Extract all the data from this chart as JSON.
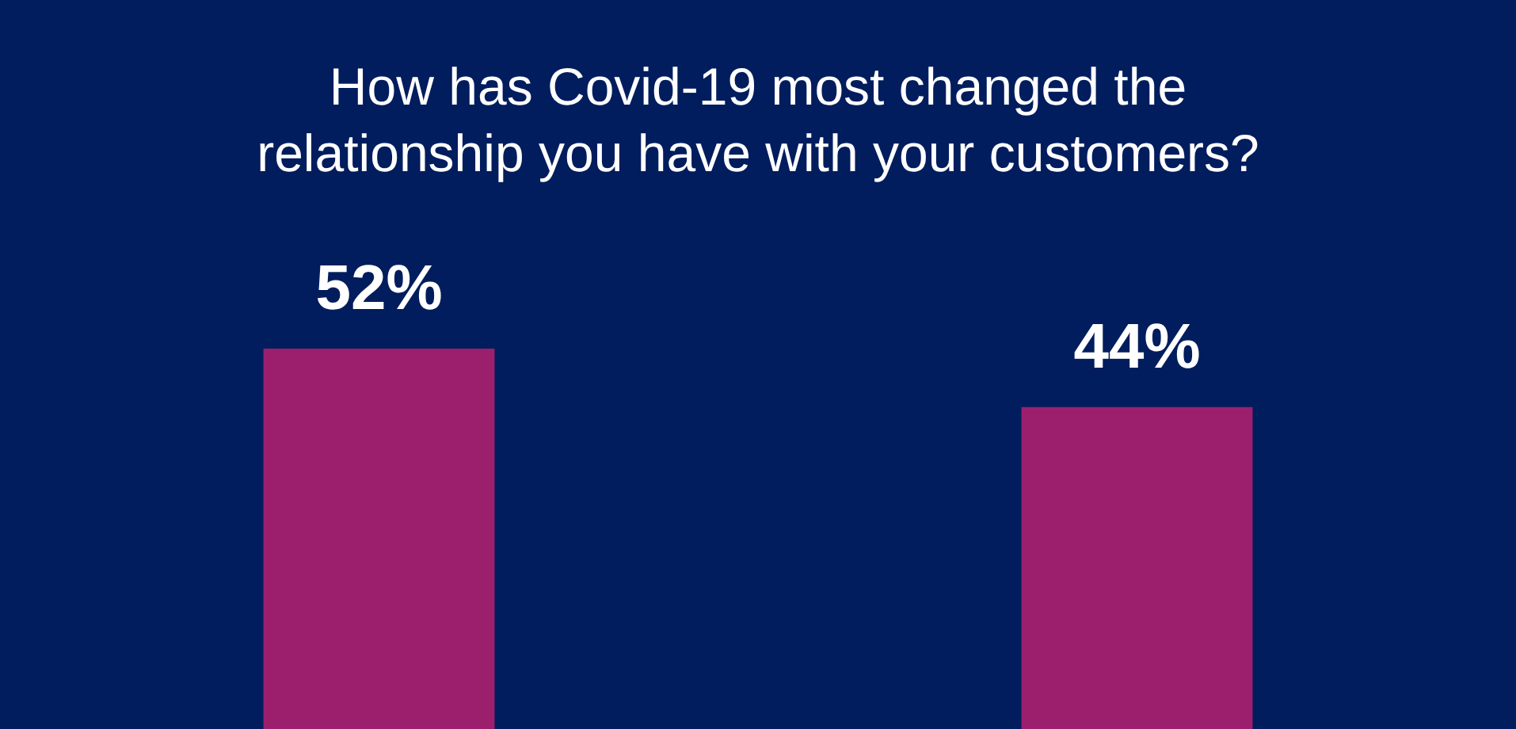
{
  "chart_data": {
    "type": "bar",
    "title": "How has Covid-19 most changed the relationship you have with your customers?",
    "categories": [
      null,
      null
    ],
    "values": [
      52,
      44
    ],
    "value_labels": [
      "52%",
      "44%"
    ],
    "color": "#9c1f6e"
  }
}
